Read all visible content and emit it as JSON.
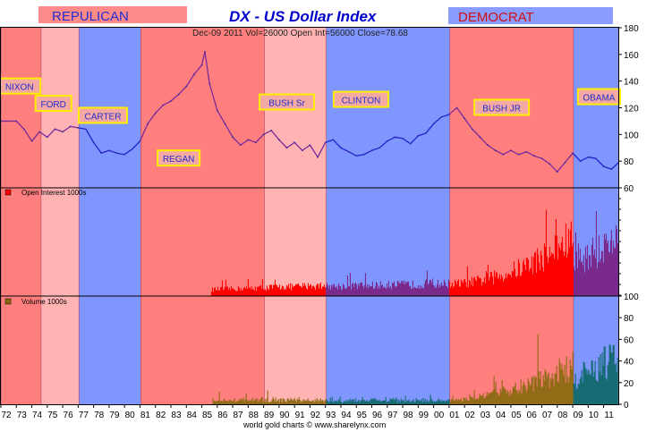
{
  "header": {
    "left_label": "REPULICAN",
    "left_label_color": "#1f2fd0",
    "left_label_bg": "#ff8a8a",
    "title": "DX  -  US Dollar Index",
    "title_color": "#0000cc",
    "right_label": "DEMOCRAT",
    "right_label_color": "#d01010",
    "right_label_bg": "#8a9cff"
  },
  "info_line": "Dec-09  2011   Vol=26000   Open Int=56000   Close=78.68",
  "footer": "world gold charts  ©  www.sharelynx.com",
  "colors": {
    "republican": "#ff7f7f",
    "republican_light": "#ffb3b3",
    "democrat": "#7f96ff",
    "price_line": "#2222cc",
    "open_interest": "#ff0000",
    "volume": "#8a6a10",
    "label_box_border": "#ffee00",
    "label_box_fill": "#f5a9a3"
  },
  "chart_data": {
    "type": "line",
    "x_axis": {
      "ticks": [
        "72",
        "73",
        "74",
        "75",
        "76",
        "77",
        "78",
        "79",
        "80",
        "81",
        "82",
        "83",
        "84",
        "85",
        "86",
        "87",
        "88",
        "89",
        "90",
        "91",
        "92",
        "93",
        "94",
        "95",
        "96",
        "97",
        "98",
        "99",
        "00",
        "01",
        "02",
        "03",
        "04",
        "05",
        "06",
        "07",
        "08",
        "09",
        "10",
        "11"
      ],
      "range": [
        1972.0,
        2011.95
      ]
    },
    "eras": [
      {
        "label": "NIXON",
        "start": 1972.0,
        "end": 1974.6,
        "party": "republican"
      },
      {
        "label": "FORD",
        "start": 1974.6,
        "end": 1977.05,
        "party": "republican_light"
      },
      {
        "label": "CARTER",
        "start": 1977.05,
        "end": 1981.05,
        "party": "democrat"
      },
      {
        "label": "REGAN",
        "start": 1981.05,
        "end": 1989.05,
        "party": "republican"
      },
      {
        "label": "BUSH Sr",
        "start": 1989.05,
        "end": 1993.05,
        "party": "republican_light"
      },
      {
        "label": "CLINTON",
        "start": 1993.05,
        "end": 2001.05,
        "party": "democrat"
      },
      {
        "label": "BUSH JR",
        "start": 2001.05,
        "end": 2009.05,
        "party": "republican"
      },
      {
        "label": "OBAMA",
        "start": 2009.05,
        "end": 2011.95,
        "party": "democrat"
      }
    ],
    "era_labels": [
      {
        "label": "NIXON",
        "x": 1973.2,
        "y": 136
      },
      {
        "label": "FORD",
        "x": 1975.4,
        "y": 123
      },
      {
        "label": "CARTER",
        "x": 1978.6,
        "y": 114
      },
      {
        "label": "REGAN",
        "x": 1983.5,
        "y": 82
      },
      {
        "label": "BUSH Sr",
        "x": 1990.5,
        "y": 124
      },
      {
        "label": "CLINTON",
        "x": 1995.3,
        "y": 126
      },
      {
        "label": "BUSH JR",
        "x": 2004.4,
        "y": 120
      },
      {
        "label": "OBAMA",
        "x": 2010.7,
        "y": 128
      }
    ],
    "panels": [
      {
        "name": "price",
        "ylim": [
          60,
          180
        ],
        "yticks": [
          60,
          80,
          100,
          120,
          140,
          160,
          180
        ],
        "series": [
          {
            "x": [
              1972.0,
              1973.0,
              1973.5,
              1974.0,
              1974.5,
              1975.0,
              1975.5,
              1976.0,
              1976.5,
              1977.0,
              1977.5,
              1978.0,
              1978.5,
              1979.0,
              1979.5,
              1980.0,
              1980.5,
              1981.0,
              1981.5,
              1982.0,
              1982.5,
              1983.0,
              1983.5,
              1984.0,
              1984.5,
              1985.0,
              1985.2,
              1985.5,
              1986.0,
              1986.5,
              1987.0,
              1987.5,
              1988.0,
              1988.5,
              1989.0,
              1989.5,
              1990.0,
              1990.5,
              1991.0,
              1991.5,
              1992.0,
              1992.5,
              1993.0,
              1993.5,
              1994.0,
              1994.5,
              1995.0,
              1995.5,
              1996.0,
              1996.5,
              1997.0,
              1997.5,
              1998.0,
              1998.5,
              1999.0,
              1999.5,
              2000.0,
              2000.5,
              2001.0,
              2001.5,
              2002.0,
              2002.5,
              2003.0,
              2003.5,
              2004.0,
              2004.5,
              2005.0,
              2005.5,
              2006.0,
              2006.5,
              2007.0,
              2007.5,
              2008.0,
              2008.5,
              2009.0,
              2009.5,
              2010.0,
              2010.5,
              2011.0,
              2011.5,
              2011.95
            ],
            "y": [
              110,
              110,
              104,
              95,
              102,
              98,
              104,
              102,
              106,
              105,
              104,
              94,
              86,
              88,
              86,
              85,
              89,
              95,
              108,
              116,
              122,
              125,
              130,
              136,
              145,
              152,
              162,
              138,
              118,
              108,
              98,
              92,
              96,
              94,
              100,
              103,
              96,
              90,
              94,
              88,
              92,
              83,
              94,
              96,
              90,
              87,
              84,
              85,
              88,
              90,
              95,
              98,
              97,
              93,
              99,
              101,
              108,
              113,
              115,
              120,
              112,
              104,
              98,
              92,
              88,
              85,
              88,
              85,
              87,
              84,
              82,
              78,
              72,
              79,
              86,
              80,
              83,
              82,
              76,
              74,
              78.68
            ]
          }
        ]
      },
      {
        "name": "open_interest",
        "label": "Open Interest 1000s"
      },
      {
        "name": "volume",
        "label": "Volume 1000s",
        "ylim": [
          0,
          100
        ],
        "yticks": [
          0,
          20,
          40,
          60,
          80,
          100
        ]
      }
    ]
  }
}
